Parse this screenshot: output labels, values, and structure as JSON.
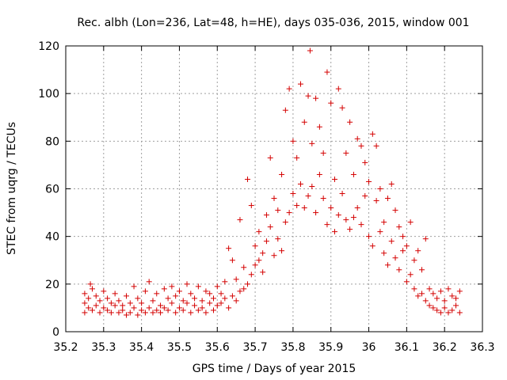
{
  "chart_data": {
    "type": "scatter",
    "title": "Rec. albh (Lon=236, Lat=48, h=HE), days 035-036, 2015, window 001",
    "xlabel": "GPS time / Days of year 2015",
    "ylabel": "STEC from uqrg / TECUs",
    "xlim": [
      35.2,
      36.3
    ],
    "ylim": [
      0,
      120
    ],
    "xticks": [
      "35.2",
      "35.3",
      "35.4",
      "35.5",
      "35.6",
      "35.7",
      "35.8",
      "35.9",
      "36",
      "36.1",
      "36.2",
      "36.3"
    ],
    "yticks": [
      "0",
      "20",
      "40",
      "60",
      "80",
      "100",
      "120"
    ],
    "grid": true,
    "marker": "+",
    "color": "#d40000",
    "series": [
      {
        "name": "STEC",
        "points": [
          [
            35.25,
            8
          ],
          [
            35.25,
            12
          ],
          [
            35.25,
            16
          ],
          [
            35.26,
            10
          ],
          [
            35.26,
            14
          ],
          [
            35.265,
            20
          ],
          [
            35.27,
            9
          ],
          [
            35.27,
            18
          ],
          [
            35.28,
            11
          ],
          [
            35.28,
            15
          ],
          [
            35.29,
            8
          ],
          [
            35.29,
            13
          ],
          [
            35.3,
            10
          ],
          [
            35.3,
            17
          ],
          [
            35.31,
            9
          ],
          [
            35.31,
            14
          ],
          [
            35.32,
            8
          ],
          [
            35.32,
            12
          ],
          [
            35.33,
            11
          ],
          [
            35.33,
            16
          ],
          [
            35.34,
            8
          ],
          [
            35.34,
            13
          ],
          [
            35.35,
            9
          ],
          [
            35.35,
            11
          ],
          [
            35.36,
            7
          ],
          [
            35.36,
            15
          ],
          [
            35.37,
            8
          ],
          [
            35.37,
            12
          ],
          [
            35.38,
            10
          ],
          [
            35.38,
            19
          ],
          [
            35.39,
            7
          ],
          [
            35.39,
            14
          ],
          [
            35.4,
            9
          ],
          [
            35.4,
            12
          ],
          [
            35.41,
            8
          ],
          [
            35.41,
            17
          ],
          [
            35.42,
            10
          ],
          [
            35.42,
            21
          ],
          [
            35.43,
            8
          ],
          [
            35.43,
            13
          ],
          [
            35.44,
            9
          ],
          [
            35.44,
            16
          ],
          [
            35.45,
            8
          ],
          [
            35.45,
            11
          ],
          [
            35.46,
            10
          ],
          [
            35.46,
            18
          ],
          [
            35.47,
            9
          ],
          [
            35.47,
            14
          ],
          [
            35.48,
            12
          ],
          [
            35.48,
            19
          ],
          [
            35.49,
            8
          ],
          [
            35.49,
            15
          ],
          [
            35.5,
            10
          ],
          [
            35.5,
            17
          ],
          [
            35.51,
            9
          ],
          [
            35.51,
            13
          ],
          [
            35.52,
            12
          ],
          [
            35.52,
            20
          ],
          [
            35.53,
            8
          ],
          [
            35.53,
            16
          ],
          [
            35.54,
            11
          ],
          [
            35.54,
            14
          ],
          [
            35.55,
            9
          ],
          [
            35.55,
            19
          ],
          [
            35.56,
            10
          ],
          [
            35.56,
            13
          ],
          [
            35.57,
            8
          ],
          [
            35.57,
            17
          ],
          [
            35.58,
            12
          ],
          [
            35.58,
            16
          ],
          [
            35.59,
            9
          ],
          [
            35.59,
            14
          ],
          [
            35.6,
            11
          ],
          [
            35.6,
            19
          ],
          [
            35.61,
            12
          ],
          [
            35.61,
            16
          ],
          [
            35.62,
            14
          ],
          [
            35.62,
            21
          ],
          [
            35.63,
            10
          ],
          [
            35.63,
            35
          ],
          [
            35.64,
            15
          ],
          [
            35.64,
            30
          ],
          [
            35.65,
            13
          ],
          [
            35.65,
            22
          ],
          [
            35.66,
            17
          ],
          [
            35.66,
            47
          ],
          [
            35.67,
            18
          ],
          [
            35.67,
            27
          ],
          [
            35.68,
            20
          ],
          [
            35.68,
            64
          ],
          [
            35.69,
            24
          ],
          [
            35.69,
            53
          ],
          [
            35.7,
            28
          ],
          [
            35.7,
            36
          ],
          [
            35.71,
            30
          ],
          [
            35.71,
            42
          ],
          [
            35.72,
            25
          ],
          [
            35.72,
            33
          ],
          [
            35.73,
            38
          ],
          [
            35.73,
            49
          ],
          [
            35.74,
            44
          ],
          [
            35.74,
            73
          ],
          [
            35.75,
            32
          ],
          [
            35.75,
            56
          ],
          [
            35.76,
            39
          ],
          [
            35.76,
            51
          ],
          [
            35.77,
            34
          ],
          [
            35.77,
            66
          ],
          [
            35.78,
            46
          ],
          [
            35.78,
            93
          ],
          [
            35.79,
            50
          ],
          [
            35.79,
            102
          ],
          [
            35.8,
            58
          ],
          [
            35.8,
            80
          ],
          [
            35.81,
            53
          ],
          [
            35.81,
            73
          ],
          [
            35.82,
            62
          ],
          [
            35.82,
            104
          ],
          [
            35.83,
            52
          ],
          [
            35.83,
            88
          ],
          [
            35.84,
            57
          ],
          [
            35.84,
            99
          ],
          [
            35.845,
            118
          ],
          [
            35.85,
            61
          ],
          [
            35.85,
            79
          ],
          [
            35.86,
            50
          ],
          [
            35.86,
            98
          ],
          [
            35.87,
            66
          ],
          [
            35.87,
            86
          ],
          [
            35.88,
            56
          ],
          [
            35.88,
            75
          ],
          [
            35.89,
            45
          ],
          [
            35.89,
            109
          ],
          [
            35.9,
            52
          ],
          [
            35.9,
            96
          ],
          [
            35.91,
            42
          ],
          [
            35.91,
            64
          ],
          [
            35.92,
            49
          ],
          [
            35.92,
            102
          ],
          [
            35.93,
            58
          ],
          [
            35.93,
            94
          ],
          [
            35.94,
            47
          ],
          [
            35.94,
            75
          ],
          [
            35.95,
            43
          ],
          [
            35.95,
            88
          ],
          [
            35.96,
            48
          ],
          [
            35.96,
            66
          ],
          [
            35.97,
            52
          ],
          [
            35.97,
            81
          ],
          [
            35.98,
            45
          ],
          [
            35.98,
            78
          ],
          [
            35.99,
            57
          ],
          [
            35.99,
            71
          ],
          [
            36.0,
            40
          ],
          [
            36.0,
            63
          ],
          [
            36.01,
            36
          ],
          [
            36.01,
            83
          ],
          [
            36.02,
            55
          ],
          [
            36.02,
            78
          ],
          [
            36.03,
            42
          ],
          [
            36.03,
            60
          ],
          [
            36.04,
            33
          ],
          [
            36.04,
            46
          ],
          [
            36.05,
            28
          ],
          [
            36.05,
            56
          ],
          [
            36.06,
            38
          ],
          [
            36.06,
            62
          ],
          [
            36.07,
            31
          ],
          [
            36.07,
            51
          ],
          [
            36.08,
            26
          ],
          [
            36.08,
            44
          ],
          [
            36.09,
            34
          ],
          [
            36.09,
            40
          ],
          [
            36.1,
            21
          ],
          [
            36.1,
            36
          ],
          [
            36.11,
            24
          ],
          [
            36.11,
            46
          ],
          [
            36.12,
            18
          ],
          [
            36.12,
            30
          ],
          [
            36.13,
            15
          ],
          [
            36.13,
            34
          ],
          [
            36.14,
            16
          ],
          [
            36.14,
            26
          ],
          [
            36.15,
            13
          ],
          [
            36.15,
            39
          ],
          [
            36.16,
            11
          ],
          [
            36.16,
            18
          ],
          [
            36.17,
            10
          ],
          [
            36.17,
            16
          ],
          [
            36.18,
            9
          ],
          [
            36.18,
            14
          ],
          [
            36.19,
            8
          ],
          [
            36.19,
            17
          ],
          [
            36.2,
            10
          ],
          [
            36.2,
            13
          ],
          [
            36.21,
            8
          ],
          [
            36.21,
            18
          ],
          [
            36.22,
            9
          ],
          [
            36.22,
            15
          ],
          [
            36.23,
            11
          ],
          [
            36.23,
            14
          ],
          [
            36.24,
            8
          ],
          [
            36.24,
            17
          ]
        ]
      }
    ]
  }
}
